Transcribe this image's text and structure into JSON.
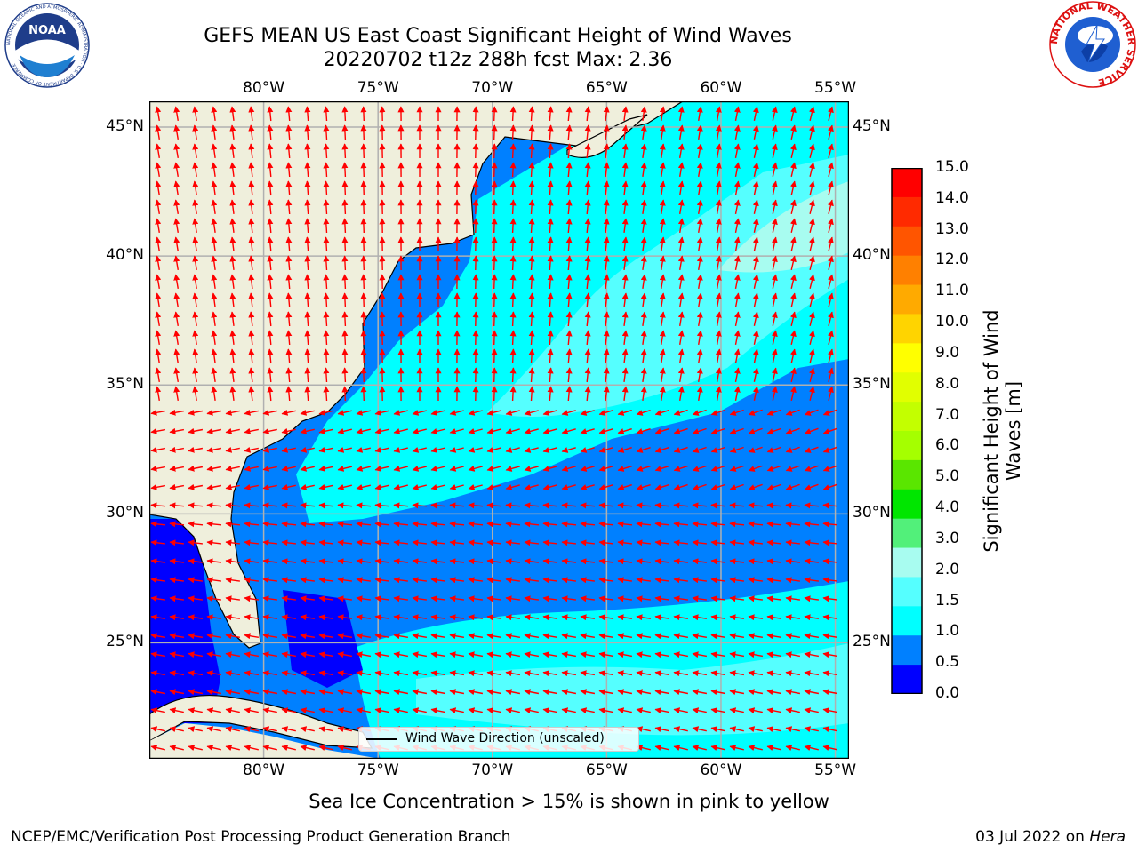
{
  "title": {
    "line1": "GEFS MEAN US East Coast Significant Height of Wind Waves",
    "line2": "20220702 t12z 288h fcst   Max: 2.36"
  },
  "map": {
    "lon_ticks": [
      "80°W",
      "75°W",
      "70°W",
      "65°W",
      "60°W",
      "55°W"
    ],
    "lat_ticks": [
      "45°N",
      "40°N",
      "35°N",
      "30°N",
      "25°N"
    ],
    "lon_range": [
      -85,
      -54.4
    ],
    "lat_range": [
      20.5,
      46.0
    ],
    "colors": {
      "land": "#efefdc",
      "coast": "#000000",
      "grid": "#b0b0b0",
      "arrow": "#ff0000"
    },
    "legend_label": "Wind Wave Direction (unscaled)"
  },
  "colorbar": {
    "labels": [
      "15.0",
      "14.0",
      "13.0",
      "12.0",
      "11.0",
      "10.0",
      "9.0",
      "8.0",
      "7.0",
      "6.0",
      "5.0",
      "4.0",
      "3.0",
      "2.0",
      "1.5",
      "1.0",
      "0.5",
      "0.0"
    ],
    "colors_top_to_bottom": [
      "#ff0000",
      "#ff2a00",
      "#ff5500",
      "#ff8000",
      "#ffaa00",
      "#ffd400",
      "#ffff00",
      "#e1ff00",
      "#c3ff00",
      "#a5ff00",
      "#5ae600",
      "#00e600",
      "#52f07a",
      "#a8fcf0",
      "#55ffff",
      "#00ffff",
      "#0080ff",
      "#0000ff"
    ],
    "title": "Significant Height of Wind Waves [m]"
  },
  "footer": {
    "ice_note": "Sea Ice Concentration > 15% is shown in pink to yellow",
    "left": "NCEP/EMC/Verification Post Processing Product Generation Branch",
    "right_date": "03 Jul 2022 on ",
    "right_host": "Hera"
  },
  "logos": {
    "noaa": "NOAA",
    "noaa_ring": "NATIONAL OCEANIC AND ATMOSPHERIC ADMINISTRATION · U.S. DEPARTMENT OF COMMERCE ·",
    "nws_ring": "NATIONAL WEATHER SERVICE"
  }
}
